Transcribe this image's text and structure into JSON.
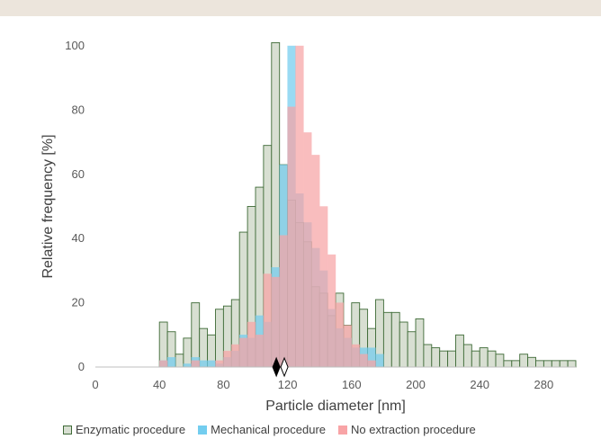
{
  "chart_data": {
    "type": "bar",
    "xlabel": "Particle diameter [nm]",
    "ylabel": "Relative frequency [%]",
    "xlim": [
      0,
      300
    ],
    "ylim": [
      0,
      100
    ],
    "x_ticks": [
      0,
      40,
      80,
      120,
      160,
      200,
      240,
      280
    ],
    "y_ticks": [
      0,
      20,
      40,
      60,
      80,
      100
    ],
    "bin_width": 5,
    "series": [
      {
        "name": "Enzymatic procedure",
        "color": "#d8dfd2",
        "edge": "#3e6a36",
        "bins": [
          [
            40,
            14
          ],
          [
            45,
            11
          ],
          [
            50,
            4
          ],
          [
            55,
            9
          ],
          [
            60,
            20
          ],
          [
            65,
            12
          ],
          [
            70,
            10
          ],
          [
            75,
            18
          ],
          [
            80,
            19
          ],
          [
            85,
            21
          ],
          [
            90,
            42
          ],
          [
            95,
            50
          ],
          [
            100,
            56
          ],
          [
            105,
            69
          ],
          [
            110,
            101
          ],
          [
            115,
            63
          ],
          [
            120,
            52
          ],
          [
            125,
            45
          ],
          [
            130,
            39
          ],
          [
            135,
            25
          ],
          [
            140,
            23
          ],
          [
            145,
            16
          ],
          [
            150,
            23
          ],
          [
            155,
            13
          ],
          [
            160,
            20
          ],
          [
            165,
            18
          ],
          [
            170,
            12
          ],
          [
            175,
            21
          ],
          [
            180,
            17
          ],
          [
            185,
            17
          ],
          [
            190,
            14
          ],
          [
            195,
            11
          ],
          [
            200,
            15
          ],
          [
            205,
            7
          ],
          [
            210,
            6
          ],
          [
            215,
            5
          ],
          [
            220,
            5
          ],
          [
            225,
            10
          ],
          [
            230,
            7
          ],
          [
            235,
            5
          ],
          [
            240,
            6
          ],
          [
            245,
            5
          ],
          [
            250,
            4
          ],
          [
            255,
            2
          ],
          [
            260,
            2
          ],
          [
            265,
            4
          ],
          [
            270,
            3
          ],
          [
            275,
            2
          ],
          [
            280,
            2
          ],
          [
            285,
            2
          ],
          [
            290,
            2
          ],
          [
            295,
            2
          ]
        ]
      },
      {
        "name": "Mechanical procedure",
        "color": "#73cdef",
        "edge": "#73cdef",
        "bins": [
          [
            40,
            2
          ],
          [
            45,
            3
          ],
          [
            55,
            1
          ],
          [
            60,
            3
          ],
          [
            65,
            2
          ],
          [
            70,
            2
          ],
          [
            75,
            1
          ],
          [
            80,
            3
          ],
          [
            85,
            5
          ],
          [
            90,
            10
          ],
          [
            95,
            9
          ],
          [
            100,
            16
          ],
          [
            105,
            14
          ],
          [
            110,
            31
          ],
          [
            115,
            63
          ],
          [
            120,
            100
          ],
          [
            125,
            54
          ],
          [
            130,
            45
          ],
          [
            135,
            37
          ],
          [
            140,
            30
          ],
          [
            145,
            18
          ],
          [
            150,
            12
          ],
          [
            155,
            9
          ],
          [
            160,
            6
          ],
          [
            165,
            6
          ],
          [
            170,
            6
          ],
          [
            175,
            4
          ]
        ]
      },
      {
        "name": "No extraction procedure",
        "color": "#f8a4a6",
        "edge": "#f8a4a6",
        "bins": [
          [
            40,
            2
          ],
          [
            60,
            2
          ],
          [
            75,
            2
          ],
          [
            80,
            5
          ],
          [
            85,
            7
          ],
          [
            90,
            9
          ],
          [
            95,
            14
          ],
          [
            100,
            10
          ],
          [
            105,
            29
          ],
          [
            110,
            28
          ],
          [
            115,
            41
          ],
          [
            120,
            81
          ],
          [
            125,
            100
          ],
          [
            130,
            73
          ],
          [
            135,
            66
          ],
          [
            140,
            50
          ],
          [
            145,
            35
          ],
          [
            150,
            20
          ],
          [
            155,
            13
          ],
          [
            160,
            7
          ],
          [
            165,
            4
          ],
          [
            170,
            2
          ]
        ]
      }
    ],
    "markers": [
      {
        "x": 113,
        "fill": "#000000"
      },
      {
        "x": 118,
        "fill": "#ffffff"
      }
    ],
    "legend_position": "bottom"
  }
}
